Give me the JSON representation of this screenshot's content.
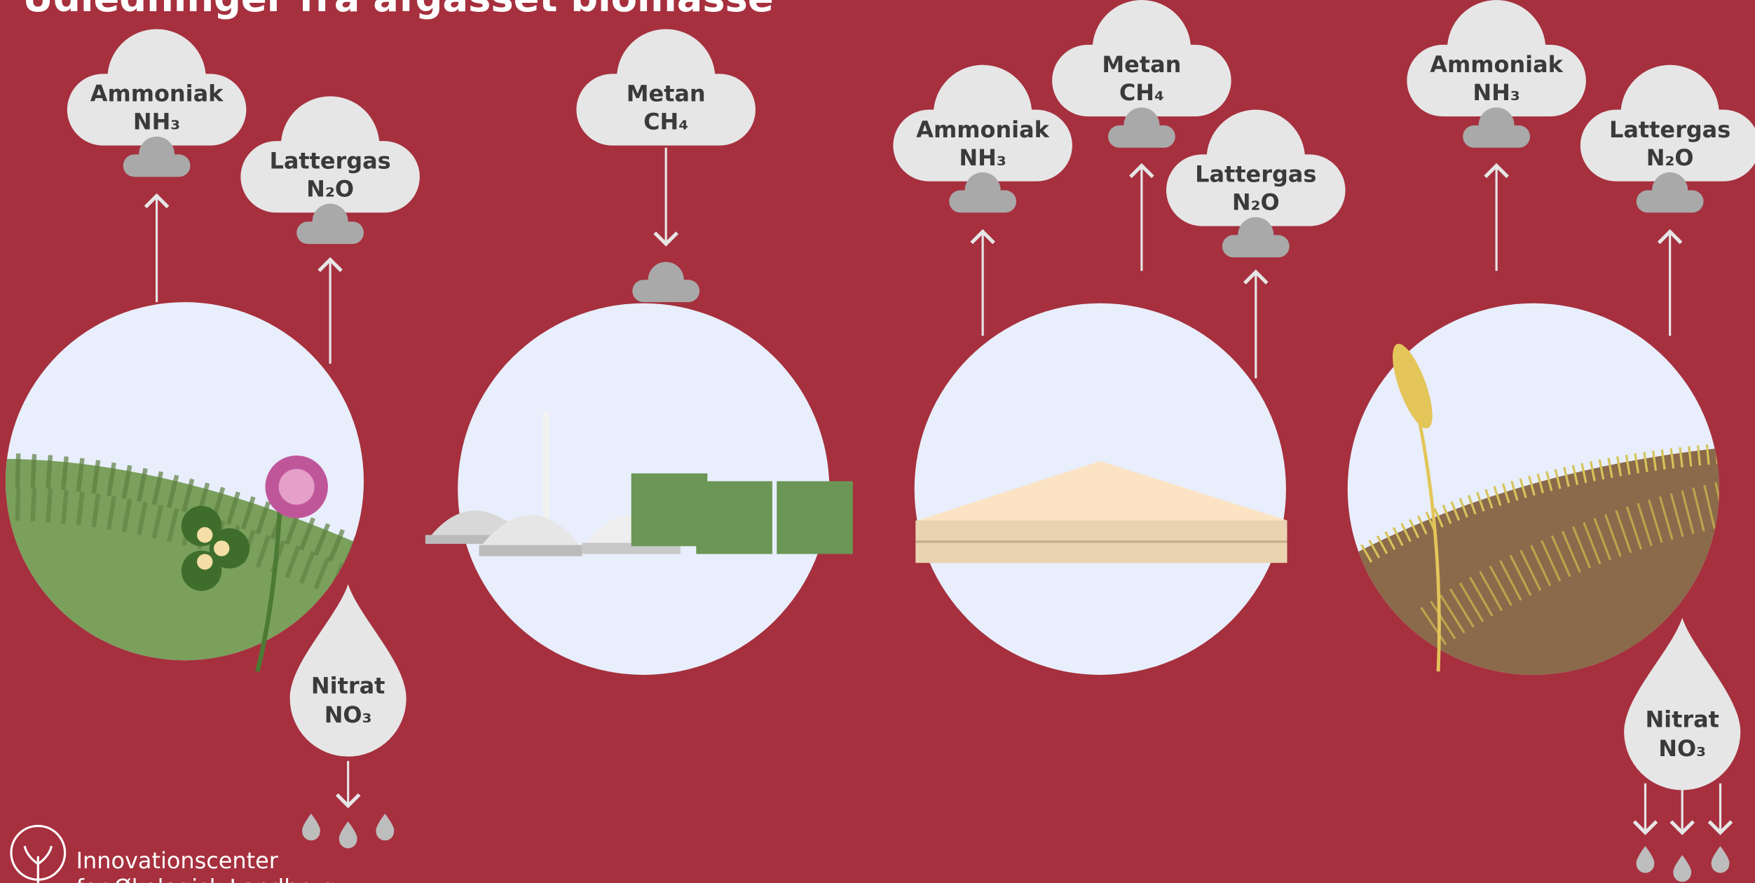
{
  "title": "Udledninger fra afgasset biomasse",
  "panels": [
    {
      "clouds": [
        {
          "name": "Ammoniak",
          "formula": "NH₃"
        },
        {
          "name": "Lattergas",
          "formula": "N₂O"
        }
      ],
      "drop": {
        "name": "Nitrat",
        "formula": "NO₃"
      }
    },
    {
      "clouds": [
        {
          "name": "Metan",
          "formula": "CH₄"
        }
      ]
    },
    {
      "clouds": [
        {
          "name": "Ammoniak",
          "formula": "NH₃"
        },
        {
          "name": "Metan",
          "formula": "CH₄"
        },
        {
          "name": "Lattergas",
          "formula": "N₂O"
        }
      ]
    },
    {
      "clouds": [
        {
          "name": "Ammoniak",
          "formula": "NH₃"
        },
        {
          "name": "Lattergas",
          "formula": "N₂O"
        }
      ],
      "drop": {
        "name": "Nitrat",
        "formula": "NO₃"
      }
    }
  ],
  "logo": {
    "line1": "Innovationscenter",
    "line2": "for Økologisk Landbrug"
  }
}
